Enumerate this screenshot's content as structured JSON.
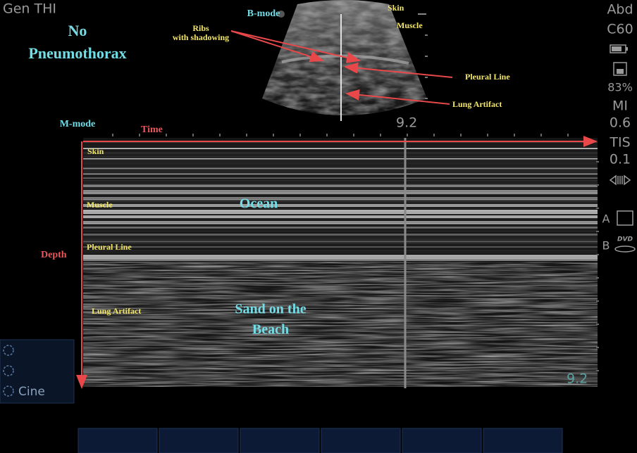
{
  "header": {
    "mode": "Gen THI"
  },
  "annotations": {
    "title": [
      "No",
      "Pneumothorax"
    ]
  },
  "b_mode": {
    "label": "B-mode",
    "ribs": [
      "Ribs",
      "with shadowing"
    ],
    "skin": "Skin",
    "muscle": "Muscle",
    "pleural_line": "Pleural Line",
    "lung_artifact": "Lung Artifact",
    "depth": "9.2"
  },
  "m_mode": {
    "label": "M-mode",
    "time": "Time",
    "depth_axis": "Depth",
    "skin": "Skin",
    "muscle": "Muscle",
    "pleural_line": "Pleural Line",
    "lung_artifact": "Lung Artifact",
    "ocean": "Ocean",
    "sand": [
      "Sand on the",
      "Beach"
    ],
    "depth": "9.2"
  },
  "status": {
    "preset": "Abd",
    "probe": "C60",
    "storage": "83%",
    "mi_label": "MI",
    "mi_value": "0.6",
    "tis_label": "TIS",
    "tis_value": "0.1",
    "a": "A",
    "b": "B",
    "dvd": "DVD"
  },
  "controls": {
    "cine": "Cine"
  }
}
